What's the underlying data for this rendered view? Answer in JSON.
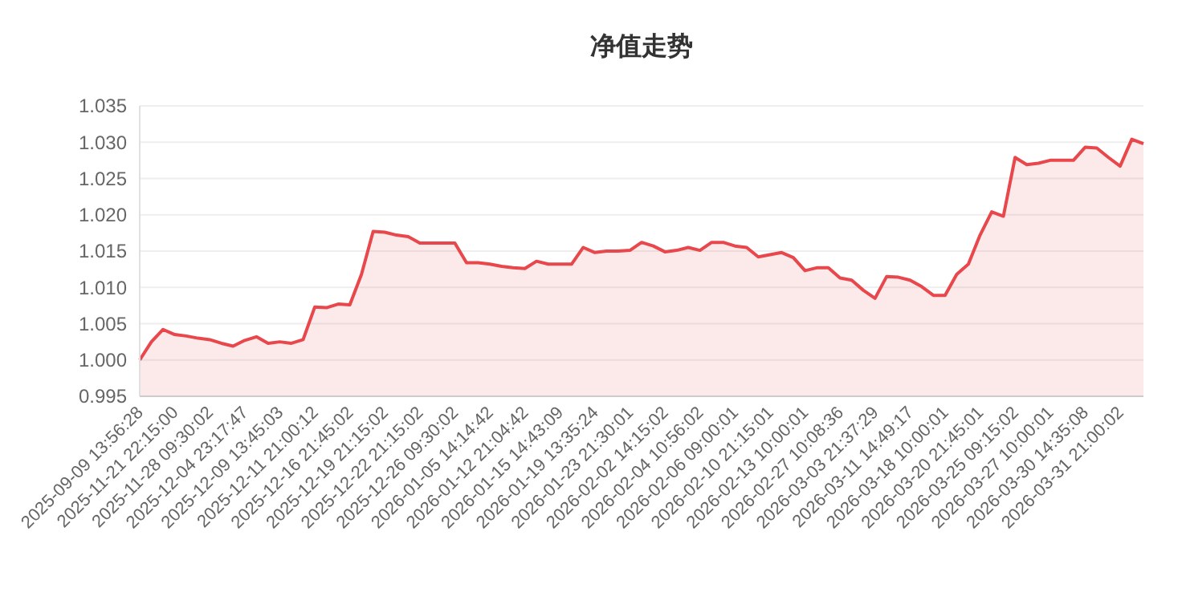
{
  "chart_data": {
    "type": "area",
    "title": "净值走势",
    "categories": [
      "2025-09-09 13:56:28",
      null,
      null,
      "2025-11-21 22:15:00",
      null,
      null,
      "2025-11-28 09:30:02",
      null,
      null,
      "2025-12-04 23:17:47",
      null,
      null,
      "2025-12-09 13:45:03",
      null,
      null,
      "2025-12-11 21:00:12",
      null,
      null,
      "2025-12-16 21:45:02",
      null,
      null,
      "2025-12-19 21:15:02",
      null,
      null,
      "2025-12-22 21:15:02",
      null,
      null,
      "2025-12-26 09:30:02",
      null,
      null,
      "2026-01-05 14:14:42",
      null,
      null,
      "2026-01-12 21:04:42",
      null,
      null,
      "2026-01-15 14:43:09",
      null,
      null,
      "2026-01-19 13:35:24",
      null,
      null,
      "2026-01-23 21:30:01",
      null,
      null,
      "2026-02-02 14:15:02",
      null,
      null,
      "2026-02-04 10:56:02",
      null,
      null,
      "2026-02-06 09:00:01",
      null,
      null,
      "2026-02-10 21:15:01",
      null,
      null,
      "2026-02-13 10:00:01",
      null,
      null,
      "2026-02-27 10:08:36",
      null,
      null,
      "2026-03-03 21:37:29",
      null,
      null,
      "2026-03-11 14:49:17",
      null,
      null,
      "2026-03-18 10:00:01",
      null,
      null,
      "2026-03-20 21:45:01",
      null,
      null,
      "2026-03-25 09:15:02",
      null,
      null,
      "2026-03-27 10:00:01",
      null,
      null,
      "2026-03-30 14:35:08",
      null,
      null,
      "2026-03-31 21:00:02",
      null,
      null
    ],
    "series": [
      {
        "color": "#e8474c",
        "values": [
          1.0,
          1.0025,
          1.0042,
          1.0035,
          1.0033,
          1.003,
          1.0028,
          1.0023,
          1.0019,
          1.0027,
          1.0032,
          1.0023,
          1.0025,
          1.0023,
          1.0028,
          1.0073,
          1.0072,
          1.0077,
          1.0076,
          1.0118,
          1.0177,
          1.0176,
          1.0172,
          1.017,
          1.0161,
          1.0161,
          1.0161,
          1.0161,
          1.0134,
          1.0134,
          1.0132,
          1.0129,
          1.0127,
          1.0126,
          1.0136,
          1.0132,
          1.0132,
          1.0132,
          1.0155,
          1.0148,
          1.015,
          1.015,
          1.0151,
          1.0162,
          1.0157,
          1.0149,
          1.0151,
          1.0155,
          1.0151,
          1.0162,
          1.0162,
          1.0157,
          1.0155,
          1.0142,
          1.0145,
          1.0148,
          1.0141,
          1.0123,
          1.0127,
          1.0127,
          1.0113,
          1.011,
          1.0096,
          1.0085,
          1.0115,
          1.0114,
          1.011,
          1.0101,
          1.0089,
          1.0089,
          1.0118,
          1.0132,
          1.0172,
          1.0204,
          1.0198,
          1.0279,
          1.0269,
          1.0271,
          1.0275,
          1.0275,
          1.0275,
          1.0293,
          1.0292,
          1.0279,
          1.0267,
          1.0304,
          1.0298
        ]
      }
    ],
    "ylim": [
      0.995,
      1.035
    ],
    "yticks": [
      {
        "value": 0.995,
        "label": "0.995"
      },
      {
        "value": 1.0,
        "label": "1.000"
      },
      {
        "value": 1.005,
        "label": "1.005"
      },
      {
        "value": 1.01,
        "label": "1.010"
      },
      {
        "value": 1.015,
        "label": "1.015"
      },
      {
        "value": 1.02,
        "label": "1.020"
      },
      {
        "value": 1.025,
        "label": "1.025"
      },
      {
        "value": 1.03,
        "label": "1.030"
      },
      {
        "value": 1.035,
        "label": "1.035"
      }
    ],
    "grid": "y",
    "marker": "none",
    "line_style": "solid"
  }
}
